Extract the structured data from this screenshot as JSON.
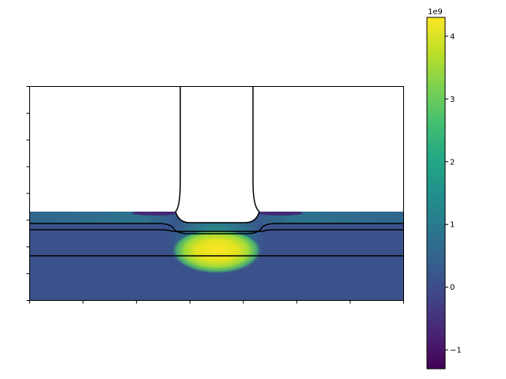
{
  "chart_data": {
    "type": "heatmap",
    "title": "",
    "xlabel": "",
    "ylabel": "",
    "x_tick_count": 8,
    "y_tick_count": 9,
    "x_tick_labels": [
      "",
      "",
      "",
      "",
      "",
      "",
      "",
      ""
    ],
    "y_tick_labels": [
      "",
      "",
      "",
      "",
      "",
      "",
      "",
      "",
      ""
    ],
    "grid": false,
    "colormap": "viridis",
    "colorbar": {
      "range": [
        -1.3,
        4.3
      ],
      "ticks": [
        -1,
        0,
        1,
        2,
        3,
        4
      ],
      "tick_labels": [
        "−1",
        "0",
        "1",
        "2",
        "3",
        "4"
      ],
      "offset_text": "1e9"
    },
    "field_description": {
      "background_value": 0.0,
      "peak_value": 4.3,
      "peak_region": "centre, below contact",
      "min_value": -1.3
    },
    "contours": 5
  },
  "colors": {
    "background": "#ffffff",
    "axis": "#000000",
    "contour": "#000000"
  }
}
